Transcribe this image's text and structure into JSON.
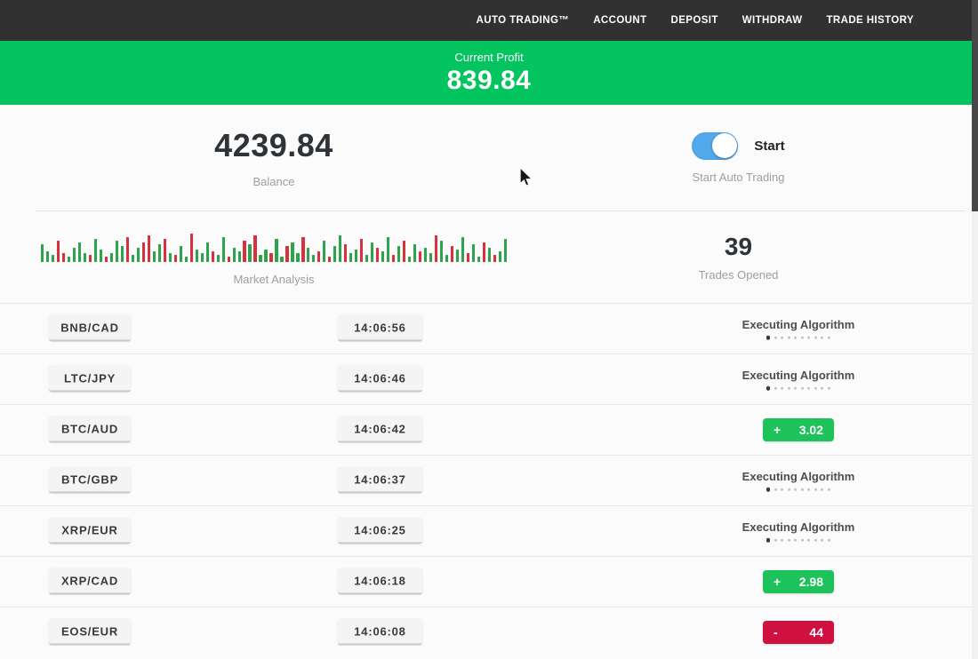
{
  "nav": {
    "items": [
      "AUTO TRADING™",
      "ACCOUNT",
      "DEPOSIT",
      "WITHDRAW",
      "TRADE HISTORY"
    ]
  },
  "profit_banner": {
    "label": "Current Profit",
    "value": "839.84",
    "background_color": "#04c45f"
  },
  "dashboard": {
    "balance": {
      "value": "4239.84",
      "label": "Balance"
    },
    "auto_trading": {
      "toggle_on": true,
      "toggle_label": "Start",
      "label": "Start Auto Trading",
      "toggle_color": "#52a9ec"
    },
    "market_analysis": {
      "label": "Market Analysis",
      "bar_colors": {
        "g": "#2ca44b",
        "r": "#d6313c"
      },
      "bars": [
        "g20",
        "g12",
        "g8",
        "r24",
        "r10",
        "g6",
        "g16",
        "g22",
        "g10",
        "r8",
        "g26",
        "g14",
        "r6",
        "g10",
        "g24",
        "g18",
        "r28",
        "g8",
        "g16",
        "r22",
        "r30",
        "g12",
        "g20",
        "r26",
        "g10",
        "r8",
        "g18",
        "g6",
        "r32",
        "g14",
        "g10",
        "g22",
        "r12",
        "g8",
        "g28",
        "r6",
        "g16",
        "g12",
        "r24",
        "g20",
        "r30",
        "g8",
        "g14",
        "r10",
        "g26",
        "g6",
        "r18",
        "g22",
        "g10",
        "r28",
        "g16",
        "g8",
        "r12",
        "g24",
        "r6",
        "g18",
        "g30",
        "r20",
        "g10",
        "g14",
        "r26",
        "g8",
        "g22",
        "r16",
        "g12",
        "g28",
        "r8",
        "g18",
        "r24",
        "g6",
        "g20",
        "r12",
        "g16",
        "g10",
        "r30",
        "g24",
        "g8",
        "r18",
        "g14",
        "g28",
        "r10",
        "g20",
        "g6",
        "r22",
        "g16",
        "r8",
        "g12",
        "g26"
      ]
    },
    "trades_opened": {
      "value": "39",
      "label": "Trades Opened"
    }
  },
  "trades": {
    "executing_dots": 10,
    "rows": [
      {
        "pair": "BNB/CAD",
        "time": "14:06:56",
        "status": "executing",
        "status_label": "Executing Algorithm"
      },
      {
        "pair": "LTC/JPY",
        "time": "14:06:46",
        "status": "executing",
        "status_label": "Executing Algorithm"
      },
      {
        "pair": "BTC/AUD",
        "time": "14:06:42",
        "status": "profit",
        "sign": "+",
        "amount": "3.02"
      },
      {
        "pair": "BTC/GBP",
        "time": "14:06:37",
        "status": "executing",
        "status_label": "Executing Algorithm"
      },
      {
        "pair": "XRP/EUR",
        "time": "14:06:25",
        "status": "executing",
        "status_label": "Executing Algorithm"
      },
      {
        "pair": "XRP/CAD",
        "time": "14:06:18",
        "status": "profit",
        "sign": "+",
        "amount": "2.98"
      },
      {
        "pair": "EOS/EUR",
        "time": "14:06:08",
        "status": "loss",
        "sign": "-",
        "amount": "44"
      }
    ],
    "status_colors": {
      "profit": "#1ec25b",
      "loss": "#d11042"
    }
  }
}
